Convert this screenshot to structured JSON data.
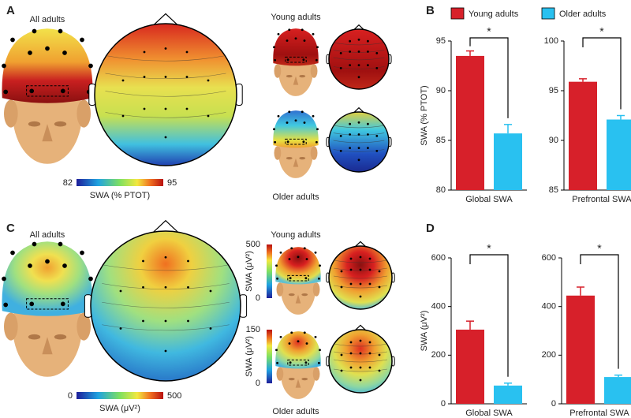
{
  "panel_a": {
    "label": "A",
    "all": "All adults",
    "young": "Young adults",
    "older": "Older adults",
    "colorbar": {
      "min": 82,
      "max": 95,
      "label": "SWA (% PTOT)"
    }
  },
  "panel_b": {
    "label": "B"
  },
  "panel_c": {
    "label": "C",
    "all": "All adults",
    "young": "Young adults",
    "older": "Older adults",
    "colorbar": {
      "min": 0,
      "max": 500,
      "label": "SWA (μV²)"
    },
    "young_colorbar": {
      "min": 0,
      "max": 500,
      "label": "SWA (μV²)"
    },
    "older_colorbar": {
      "min": 0,
      "max": 150,
      "label": "SWA (μV²)"
    }
  },
  "panel_d": {
    "label": "D"
  },
  "chart_data": [
    {
      "type": "bar",
      "categories": [
        "Global SWA"
      ],
      "ylabel": "SWA (% PTOT)",
      "annotation": "*",
      "ylim": [
        80,
        95
      ],
      "yticks": [
        80,
        85,
        90,
        95
      ],
      "series": [
        {
          "name": "Young adults",
          "color": "#d7202a",
          "values": [
            93.5
          ],
          "errors": [
            0.5
          ]
        },
        {
          "name": "Older adults",
          "color": "#29c1f0",
          "values": [
            85.7
          ],
          "errors": [
            0.9
          ]
        }
      ]
    },
    {
      "type": "bar",
      "categories": [
        "Prefrontal SWA"
      ],
      "annotation": "*",
      "ylim": [
        85,
        100
      ],
      "yticks": [
        85,
        90,
        95,
        100
      ],
      "series": [
        {
          "color": "#d7202a",
          "values": [
            95.9
          ],
          "errors": [
            0.3
          ]
        },
        {
          "color": "#29c1f0",
          "values": [
            92.1
          ],
          "errors": [
            0.4
          ]
        }
      ]
    },
    {
      "type": "bar",
      "categories": [
        "Global SWA"
      ],
      "ylabel": "SWA (μV²)",
      "annotation": "*",
      "ylim": [
        0,
        600
      ],
      "yticks": [
        0,
        200,
        400,
        600
      ],
      "series": [
        {
          "color": "#d7202a",
          "values": [
            305
          ],
          "errors": [
            35
          ]
        },
        {
          "color": "#29c1f0",
          "values": [
            75
          ],
          "errors": [
            10
          ]
        }
      ]
    },
    {
      "type": "bar",
      "categories": [
        "Prefrontal SWA"
      ],
      "annotation": "*",
      "ylim": [
        0,
        600
      ],
      "yticks": [
        0,
        200,
        400,
        600
      ],
      "series": [
        {
          "color": "#d7202a",
          "values": [
            445
          ],
          "errors": [
            35
          ]
        },
        {
          "color": "#29c1f0",
          "values": [
            110
          ],
          "errors": [
            8
          ]
        }
      ]
    }
  ]
}
